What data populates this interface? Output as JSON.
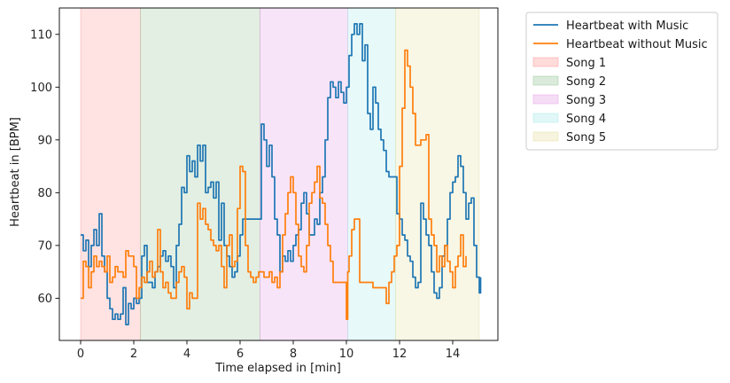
{
  "chart_data": {
    "type": "line",
    "xlabel": "Time elapsed in [min]",
    "ylabel": "Heartbeat in [BPM]",
    "xlim": [
      -0.8,
      15.7
    ],
    "ylim": [
      52,
      115
    ],
    "x_ticks": [
      0,
      2,
      4,
      6,
      8,
      10,
      12,
      14
    ],
    "y_ticks": [
      60,
      70,
      80,
      90,
      100,
      110
    ],
    "grid": false,
    "legend_position": "outside-top-right",
    "series": [
      {
        "name": "Heartbeat with Music",
        "color": "#1f77b4",
        "points": [
          [
            0.0,
            72
          ],
          [
            0.1,
            69
          ],
          [
            0.2,
            71
          ],
          [
            0.3,
            66
          ],
          [
            0.4,
            70
          ],
          [
            0.5,
            73
          ],
          [
            0.6,
            70
          ],
          [
            0.7,
            76
          ],
          [
            0.8,
            68
          ],
          [
            0.9,
            65
          ],
          [
            1.0,
            60
          ],
          [
            1.1,
            58
          ],
          [
            1.2,
            56
          ],
          [
            1.3,
            57
          ],
          [
            1.4,
            56
          ],
          [
            1.5,
            57
          ],
          [
            1.6,
            62
          ],
          [
            1.7,
            55
          ],
          [
            1.8,
            59
          ],
          [
            1.9,
            58
          ],
          [
            2.0,
            60
          ],
          [
            2.1,
            59
          ],
          [
            2.2,
            60
          ],
          [
            2.3,
            68
          ],
          [
            2.4,
            70
          ],
          [
            2.5,
            63
          ],
          [
            2.6,
            63
          ],
          [
            2.7,
            62
          ],
          [
            2.8,
            65
          ],
          [
            2.9,
            66
          ],
          [
            3.0,
            68
          ],
          [
            3.1,
            69
          ],
          [
            3.2,
            67
          ],
          [
            3.3,
            68
          ],
          [
            3.4,
            66
          ],
          [
            3.5,
            62
          ],
          [
            3.6,
            70
          ],
          [
            3.7,
            74
          ],
          [
            3.8,
            81
          ],
          [
            3.9,
            80
          ],
          [
            4.0,
            87
          ],
          [
            4.1,
            84
          ],
          [
            4.2,
            86
          ],
          [
            4.3,
            83
          ],
          [
            4.4,
            89
          ],
          [
            4.5,
            86
          ],
          [
            4.6,
            89
          ],
          [
            4.7,
            80
          ],
          [
            4.8,
            81
          ],
          [
            4.9,
            82
          ],
          [
            5.0,
            79
          ],
          [
            5.1,
            82
          ],
          [
            5.2,
            71
          ],
          [
            5.3,
            78
          ],
          [
            5.4,
            70
          ],
          [
            5.5,
            68
          ],
          [
            5.6,
            66
          ],
          [
            5.7,
            64
          ],
          [
            5.8,
            65
          ],
          [
            5.9,
            68
          ],
          [
            6.0,
            72
          ],
          [
            6.1,
            75
          ],
          [
            6.2,
            75
          ],
          [
            6.3,
            75
          ],
          [
            6.4,
            75
          ],
          [
            6.5,
            75
          ],
          [
            6.6,
            75
          ],
          [
            6.7,
            75
          ],
          [
            6.8,
            93
          ],
          [
            6.9,
            90
          ],
          [
            7.0,
            85
          ],
          [
            7.1,
            89
          ],
          [
            7.2,
            83
          ],
          [
            7.3,
            75
          ],
          [
            7.4,
            72
          ],
          [
            7.5,
            65
          ],
          [
            7.6,
            68
          ],
          [
            7.7,
            67
          ],
          [
            7.8,
            69
          ],
          [
            7.9,
            67
          ],
          [
            8.0,
            70
          ],
          [
            8.1,
            72
          ],
          [
            8.2,
            73
          ],
          [
            8.3,
            78
          ],
          [
            8.4,
            80
          ],
          [
            8.5,
            76
          ],
          [
            8.6,
            72
          ],
          [
            8.7,
            72
          ],
          [
            8.8,
            75
          ],
          [
            8.9,
            74
          ],
          [
            9.0,
            80
          ],
          [
            9.1,
            83
          ],
          [
            9.2,
            90
          ],
          [
            9.3,
            98
          ],
          [
            9.4,
            101
          ],
          [
            9.5,
            100
          ],
          [
            9.6,
            98
          ],
          [
            9.7,
            101
          ],
          [
            9.8,
            99
          ],
          [
            9.9,
            97
          ],
          [
            10.0,
            100
          ],
          [
            10.1,
            106
          ],
          [
            10.2,
            110
          ],
          [
            10.3,
            112
          ],
          [
            10.4,
            110
          ],
          [
            10.5,
            112
          ],
          [
            10.6,
            105
          ],
          [
            10.7,
            108
          ],
          [
            10.8,
            95
          ],
          [
            10.9,
            92
          ],
          [
            11.0,
            100
          ],
          [
            11.1,
            97
          ],
          [
            11.2,
            92
          ],
          [
            11.3,
            90
          ],
          [
            11.4,
            88
          ],
          [
            11.5,
            84
          ],
          [
            11.6,
            83
          ],
          [
            11.7,
            83
          ],
          [
            11.8,
            83
          ],
          [
            11.9,
            76
          ],
          [
            12.0,
            75
          ],
          [
            12.1,
            72
          ],
          [
            12.2,
            71
          ],
          [
            12.3,
            68
          ],
          [
            12.4,
            67
          ],
          [
            12.5,
            64
          ],
          [
            12.6,
            62
          ],
          [
            12.7,
            63
          ],
          [
            12.8,
            78
          ],
          [
            12.9,
            75
          ],
          [
            13.0,
            72
          ],
          [
            13.1,
            70
          ],
          [
            13.2,
            65
          ],
          [
            13.3,
            61
          ],
          [
            13.4,
            60
          ],
          [
            13.5,
            62
          ],
          [
            13.6,
            68
          ],
          [
            13.7,
            70
          ],
          [
            13.8,
            75
          ],
          [
            13.9,
            80
          ],
          [
            14.0,
            82
          ],
          [
            14.1,
            83
          ],
          [
            14.2,
            87
          ],
          [
            14.3,
            85
          ],
          [
            14.4,
            80
          ],
          [
            14.5,
            75
          ],
          [
            14.6,
            78
          ],
          [
            14.7,
            79
          ],
          [
            14.8,
            70
          ],
          [
            14.9,
            64
          ],
          [
            15.0,
            61
          ],
          [
            15.05,
            64
          ]
        ]
      },
      {
        "name": "Heartbeat without Music",
        "color": "#ff7f0e",
        "points": [
          [
            0.0,
            60
          ],
          [
            0.1,
            67
          ],
          [
            0.2,
            66
          ],
          [
            0.3,
            62
          ],
          [
            0.4,
            65
          ],
          [
            0.5,
            68
          ],
          [
            0.6,
            66
          ],
          [
            0.7,
            67
          ],
          [
            0.8,
            66
          ],
          [
            0.9,
            65
          ],
          [
            1.0,
            68
          ],
          [
            1.1,
            63
          ],
          [
            1.2,
            64
          ],
          [
            1.3,
            66
          ],
          [
            1.4,
            65
          ],
          [
            1.5,
            65
          ],
          [
            1.6,
            64
          ],
          [
            1.7,
            69
          ],
          [
            1.8,
            68
          ],
          [
            1.9,
            68
          ],
          [
            2.0,
            66
          ],
          [
            2.1,
            60
          ],
          [
            2.2,
            62
          ],
          [
            2.3,
            64
          ],
          [
            2.4,
            63
          ],
          [
            2.5,
            65
          ],
          [
            2.6,
            67
          ],
          [
            2.7,
            64
          ],
          [
            2.8,
            65
          ],
          [
            2.9,
            73
          ],
          [
            3.0,
            65
          ],
          [
            3.1,
            62
          ],
          [
            3.2,
            63
          ],
          [
            3.3,
            61
          ],
          [
            3.4,
            60
          ],
          [
            3.5,
            60
          ],
          [
            3.6,
            63
          ],
          [
            3.7,
            65
          ],
          [
            3.8,
            66
          ],
          [
            3.9,
            64
          ],
          [
            4.0,
            58
          ],
          [
            4.1,
            61
          ],
          [
            4.2,
            60
          ],
          [
            4.3,
            60
          ],
          [
            4.4,
            78
          ],
          [
            4.5,
            75
          ],
          [
            4.6,
            77
          ],
          [
            4.7,
            74
          ],
          [
            4.8,
            73
          ],
          [
            4.9,
            71
          ],
          [
            5.0,
            70
          ],
          [
            5.1,
            69
          ],
          [
            5.2,
            70
          ],
          [
            5.3,
            66
          ],
          [
            5.4,
            62
          ],
          [
            5.5,
            70
          ],
          [
            5.6,
            72
          ],
          [
            5.7,
            66
          ],
          [
            5.8,
            67
          ],
          [
            5.9,
            77
          ],
          [
            6.0,
            85
          ],
          [
            6.1,
            84
          ],
          [
            6.2,
            70
          ],
          [
            6.3,
            65
          ],
          [
            6.4,
            64
          ],
          [
            6.5,
            63
          ],
          [
            6.6,
            64
          ],
          [
            6.7,
            65
          ],
          [
            6.8,
            65
          ],
          [
            6.9,
            64
          ],
          [
            7.0,
            64
          ],
          [
            7.1,
            65
          ],
          [
            7.2,
            63
          ],
          [
            7.3,
            64
          ],
          [
            7.4,
            62
          ],
          [
            7.5,
            65
          ],
          [
            7.6,
            72
          ],
          [
            7.7,
            76
          ],
          [
            7.8,
            80
          ],
          [
            7.9,
            83
          ],
          [
            8.0,
            80
          ],
          [
            8.1,
            74
          ],
          [
            8.2,
            68
          ],
          [
            8.3,
            66
          ],
          [
            8.4,
            65
          ],
          [
            8.5,
            70
          ],
          [
            8.6,
            78
          ],
          [
            8.7,
            80
          ],
          [
            8.8,
            82
          ],
          [
            8.9,
            85
          ],
          [
            9.0,
            79
          ],
          [
            9.1,
            78
          ],
          [
            9.2,
            74
          ],
          [
            9.3,
            70
          ],
          [
            9.4,
            67
          ],
          [
            9.5,
            63
          ],
          [
            9.6,
            63
          ],
          [
            9.7,
            63
          ],
          [
            9.8,
            63
          ],
          [
            9.9,
            63
          ],
          [
            10.0,
            56
          ],
          [
            10.05,
            65
          ],
          [
            10.1,
            68
          ],
          [
            10.2,
            73
          ],
          [
            10.3,
            75
          ],
          [
            10.4,
            75
          ],
          [
            10.5,
            63
          ],
          [
            10.6,
            63
          ],
          [
            10.7,
            63
          ],
          [
            10.8,
            63
          ],
          [
            10.9,
            63
          ],
          [
            11.0,
            62
          ],
          [
            11.1,
            62
          ],
          [
            11.2,
            62
          ],
          [
            11.3,
            62
          ],
          [
            11.4,
            62
          ],
          [
            11.5,
            59
          ],
          [
            11.6,
            63
          ],
          [
            11.7,
            65
          ],
          [
            11.8,
            68
          ],
          [
            11.9,
            70
          ],
          [
            12.0,
            85
          ],
          [
            12.1,
            96
          ],
          [
            12.2,
            107
          ],
          [
            12.3,
            104
          ],
          [
            12.4,
            100
          ],
          [
            12.5,
            95
          ],
          [
            12.6,
            89
          ],
          [
            12.7,
            89
          ],
          [
            12.8,
            90
          ],
          [
            12.9,
            90
          ],
          [
            13.0,
            91
          ],
          [
            13.1,
            75
          ],
          [
            13.2,
            72
          ],
          [
            13.3,
            70
          ],
          [
            13.4,
            65
          ],
          [
            13.5,
            68
          ],
          [
            13.6,
            66
          ],
          [
            13.7,
            70
          ],
          [
            13.8,
            67
          ],
          [
            13.9,
            65
          ],
          [
            14.0,
            62
          ],
          [
            14.1,
            66
          ],
          [
            14.2,
            68
          ],
          [
            14.3,
            72
          ],
          [
            14.4,
            66
          ],
          [
            14.5,
            68
          ]
        ]
      }
    ],
    "bands": [
      {
        "name": "Song 1",
        "x0": 0.0,
        "x1": 2.25,
        "color": "#ff9896"
      },
      {
        "name": "Song 2",
        "x0": 2.25,
        "x1": 6.75,
        "color": "#98c698"
      },
      {
        "name": "Song 3",
        "x0": 6.75,
        "x1": 10.05,
        "color": "#e59ee5"
      },
      {
        "name": "Song 4",
        "x0": 10.05,
        "x1": 11.85,
        "color": "#a8e8e8"
      },
      {
        "name": "Song 5",
        "x0": 11.85,
        "x1": 15.0,
        "color": "#e6e0a0"
      }
    ]
  }
}
